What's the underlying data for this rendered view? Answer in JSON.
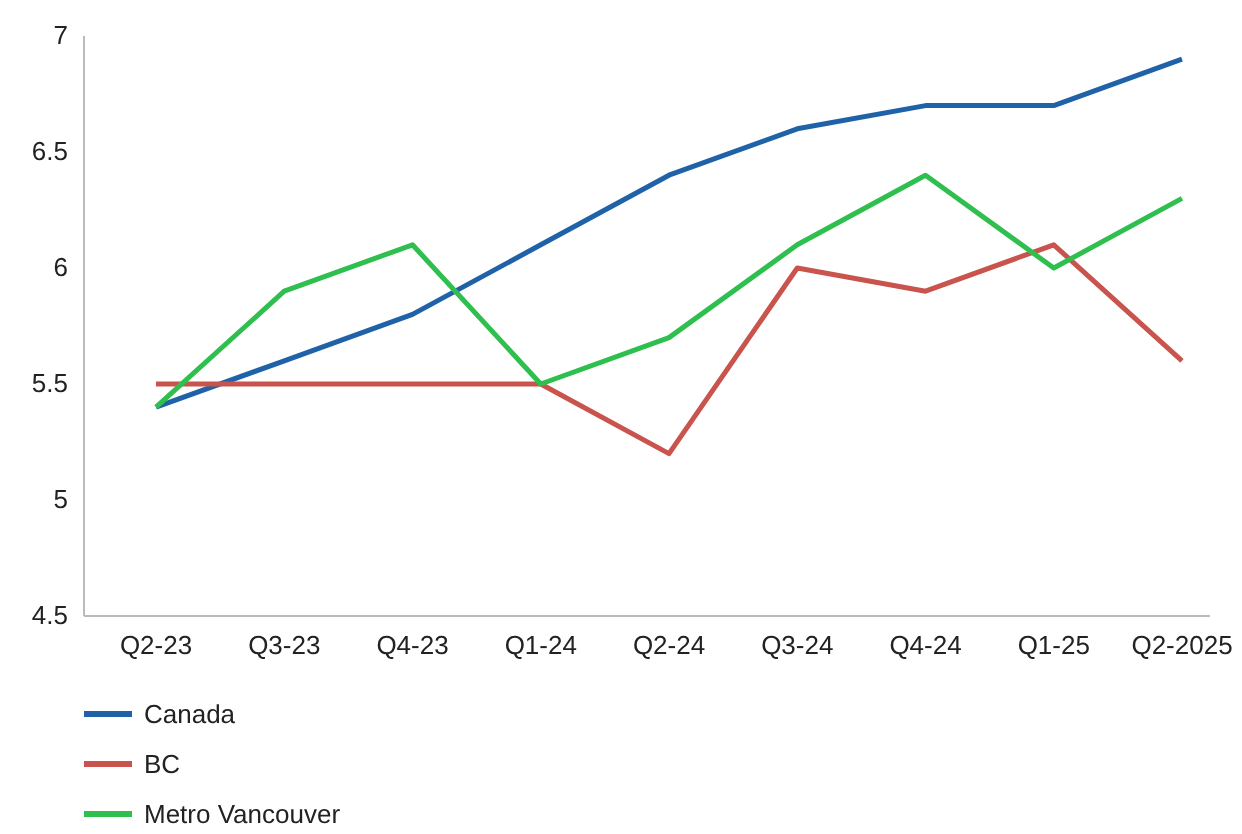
{
  "chart_data": {
    "type": "line",
    "categories": [
      "Q2-23",
      "Q3-23",
      "Q4-23",
      "Q1-24",
      "Q2-24",
      "Q3-24",
      "Q4-24",
      "Q1-25",
      "Q2-2025"
    ],
    "series": [
      {
        "name": "Canada",
        "color": "#1f62a8",
        "values": [
          5.4,
          5.6,
          5.8,
          6.1,
          6.4,
          6.6,
          6.7,
          6.7,
          6.9
        ]
      },
      {
        "name": "BC",
        "color": "#c9544d",
        "values": [
          5.5,
          5.5,
          5.5,
          5.5,
          5.2,
          6.0,
          5.9,
          6.1,
          5.6
        ]
      },
      {
        "name": "Metro Vancouver",
        "color": "#2fbf4f",
        "values": [
          5.4,
          5.9,
          6.1,
          5.5,
          5.7,
          6.1,
          6.4,
          6.0,
          6.3
        ]
      }
    ],
    "ylim": [
      4.5,
      7
    ],
    "yticks": [
      4.5,
      5,
      5.5,
      6,
      6.5,
      7
    ],
    "grid": false,
    "legend": "bottom",
    "marker": "none",
    "line_style": "solid"
  }
}
